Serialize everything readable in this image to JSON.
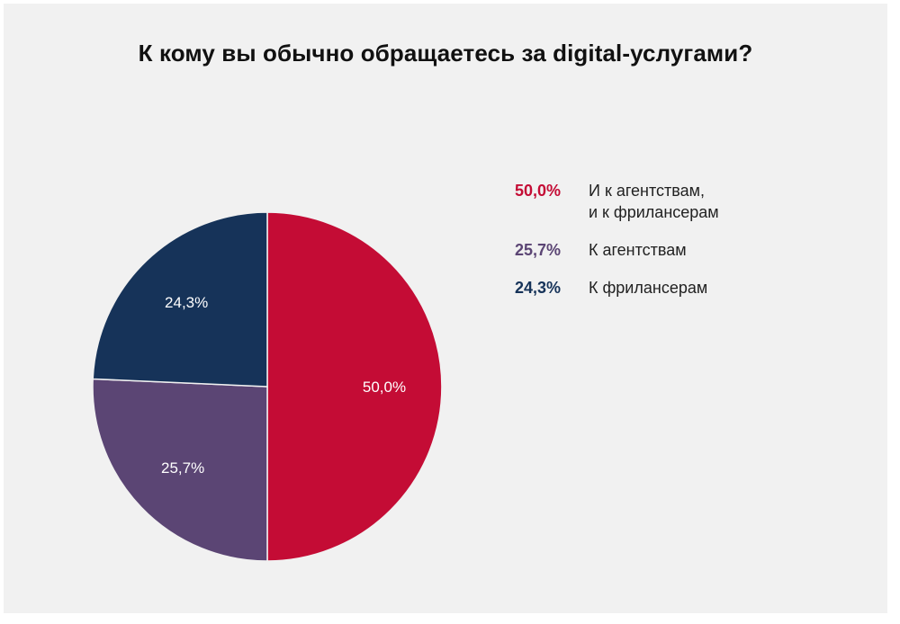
{
  "chart_data": {
    "type": "pie",
    "title": "К кому вы обычно обращаетесь за digital-услугами?",
    "slices": [
      {
        "name": "И к агентствам,\nи к фрилансерам",
        "value": 50.0,
        "label": "50,0%",
        "color": "#c40c35"
      },
      {
        "name": "К агентствам",
        "value": 25.7,
        "label": "25,7%",
        "color": "#5b4574"
      },
      {
        "name": "К фрилансерам",
        "value": 24.3,
        "label": "24,3%",
        "color": "#163359"
      }
    ],
    "legend_position": "right"
  }
}
